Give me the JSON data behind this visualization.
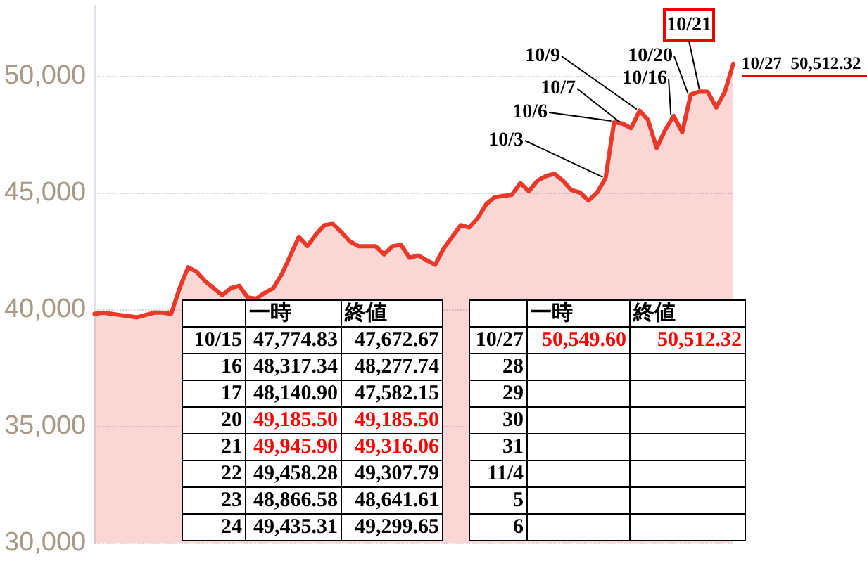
{
  "chart_data": {
    "type": "area",
    "categories": [
      null,
      null,
      null,
      null,
      null,
      null,
      null,
      null,
      null,
      null,
      null,
      null,
      null,
      null,
      null,
      null,
      null,
      null,
      null,
      null,
      null,
      null,
      null,
      null,
      null,
      null,
      null,
      null,
      null,
      null,
      null,
      null,
      null,
      null,
      null,
      null,
      null,
      null,
      null,
      null,
      null,
      null,
      null,
      null,
      null,
      null,
      null,
      null,
      null,
      null,
      null,
      null,
      null,
      null,
      null,
      null,
      null,
      null,
      null,
      null,
      null,
      null,
      null,
      null,
      null,
      null,
      null,
      null,
      null,
      null,
      null,
      null,
      null,
      null,
      null,
      null
    ],
    "series": [
      {
        "color": "#e8392b",
        "values": [
          39800,
          39850,
          39800,
          39750,
          39700,
          39650,
          39750,
          39850,
          39850,
          39800,
          40900,
          41800,
          41600,
          41200,
          40900,
          40600,
          40900,
          41000,
          40500,
          40450,
          40700,
          40900,
          41500,
          42300,
          43100,
          42700,
          43200,
          43600,
          43650,
          43300,
          42900,
          42700,
          42700,
          42700,
          42350,
          42700,
          42750,
          42200,
          42300,
          42100,
          41900,
          42600,
          43100,
          43600,
          43500,
          43900,
          44500,
          44800,
          44850,
          44900,
          45400,
          45050,
          45500,
          45700,
          45800,
          45500,
          45100,
          45000,
          44650,
          45000,
          45600,
          48000,
          47950,
          47750,
          48500,
          48100,
          46900,
          47670,
          48280,
          47580,
          49190,
          49320,
          49310,
          48640,
          49300,
          50510
        ]
      }
    ],
    "ylim": [
      30000,
      53000
    ],
    "yticks": [
      {
        "value": 30000,
        "label": "30,000"
      },
      {
        "value": 35000,
        "label": "35,000"
      },
      {
        "value": 40000,
        "label": "40,000"
      },
      {
        "value": 45000,
        "label": "45,000"
      },
      {
        "value": 50000,
        "label": "50,000"
      }
    ],
    "grid": "y",
    "tick_labels": "y",
    "annotations": [
      "10/3",
      "10/6",
      "10/7",
      "10/9",
      "10/16",
      "10/20",
      "10/21",
      "10/27  50,512.32",
      " 一時 終値",
      "10/15 47,774.83 47,672.67",
      "16 48,317.34 48,277.74",
      "17 48,140.90 47,582.15",
      "20 49,185.50 49,185.50",
      "21 49,945.90 49,316.06",
      "22 49,458.28 49,307.79",
      "23 48,866.58 48,641.61",
      "24 49,435.31 49,299.65",
      " 一時 終値",
      "10/27 50,549.60 50,512.32",
      "28",
      "29",
      "30",
      "31",
      "11/4",
      "5",
      "6"
    ]
  }
}
